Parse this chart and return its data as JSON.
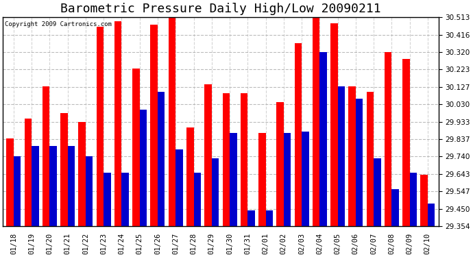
{
  "title": "Barometric Pressure Daily High/Low 20090211",
  "copyright": "Copyright 2009 Cartronics.com",
  "dates": [
    "01/18",
    "01/19",
    "01/20",
    "01/21",
    "01/22",
    "01/23",
    "01/24",
    "01/25",
    "01/26",
    "01/27",
    "01/28",
    "01/29",
    "01/30",
    "01/31",
    "02/01",
    "02/02",
    "02/03",
    "02/04",
    "02/05",
    "02/06",
    "02/07",
    "02/08",
    "02/09",
    "02/10"
  ],
  "highs": [
    29.84,
    29.95,
    30.13,
    29.98,
    29.93,
    30.46,
    30.49,
    30.23,
    30.47,
    30.52,
    29.9,
    30.14,
    30.09,
    30.09,
    29.87,
    30.04,
    30.37,
    30.51,
    30.48,
    30.13,
    30.1,
    30.32,
    30.28,
    29.64
  ],
  "lows": [
    29.74,
    29.8,
    29.8,
    29.8,
    29.74,
    29.65,
    29.65,
    30.0,
    30.1,
    29.78,
    29.65,
    29.73,
    29.87,
    29.44,
    29.44,
    29.87,
    29.88,
    30.32,
    30.13,
    30.06,
    29.73,
    29.56,
    29.65,
    29.48
  ],
  "ylim_min": 29.354,
  "ylim_max": 30.513,
  "yticks": [
    29.354,
    29.45,
    29.547,
    29.643,
    29.74,
    29.837,
    29.933,
    30.03,
    30.127,
    30.223,
    30.32,
    30.416,
    30.513
  ],
  "high_color": "#ff0000",
  "low_color": "#0000cc",
  "bg_color": "#ffffff",
  "title_fontsize": 13,
  "tick_fontsize": 7.5
}
